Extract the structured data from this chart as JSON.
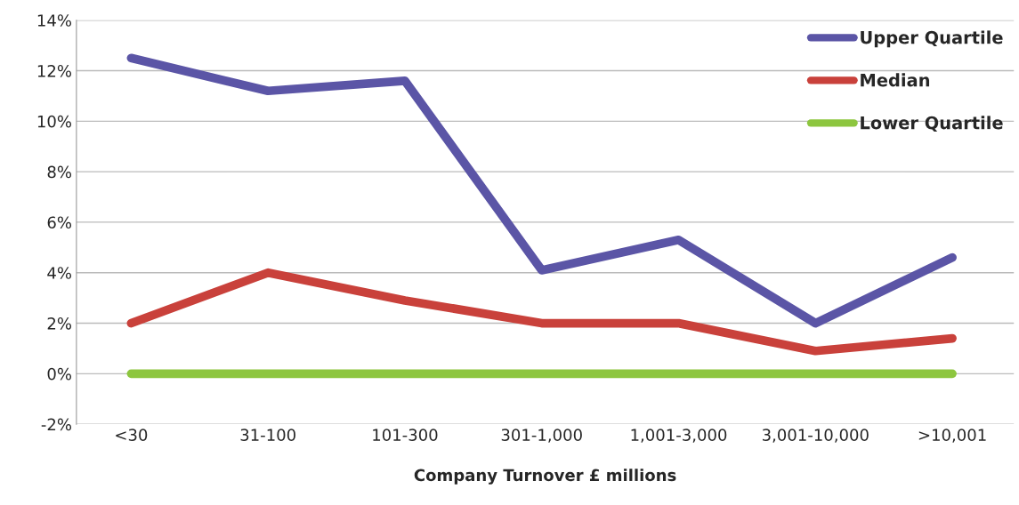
{
  "chart_data": {
    "type": "line",
    "xlabel": "Company Turnover £ millions",
    "categories": [
      "<30",
      "31-100",
      "101-300",
      "301-1,000",
      "1,001-3,000",
      "3,001-10,000",
      ">10,001"
    ],
    "series": [
      {
        "name": "Upper Quartile",
        "color": "#5b55a6",
        "values": [
          12.5,
          11.2,
          11.6,
          4.1,
          5.3,
          2.0,
          4.6
        ]
      },
      {
        "name": "Median",
        "color": "#c9413b",
        "values": [
          2.0,
          4.0,
          2.9,
          2.0,
          2.0,
          0.9,
          1.4
        ]
      },
      {
        "name": "Lower Quartile",
        "color": "#8dc63f",
        "values": [
          0,
          0,
          0,
          0,
          0,
          0,
          0
        ]
      }
    ],
    "ylim": [
      -2,
      14
    ],
    "yticks": [
      {
        "value": -2,
        "label": "-2%"
      },
      {
        "value": 0,
        "label": "0%"
      },
      {
        "value": 2,
        "label": "2%"
      },
      {
        "value": 4,
        "label": "4%"
      },
      {
        "value": 6,
        "label": "6%"
      },
      {
        "value": 8,
        "label": "8%"
      },
      {
        "value": 10,
        "label": "10%"
      },
      {
        "value": 12,
        "label": "12%"
      },
      {
        "value": 14,
        "label": "14%"
      }
    ],
    "grid": "y",
    "legend": "top right",
    "marker": "none",
    "line_style": "solid"
  }
}
